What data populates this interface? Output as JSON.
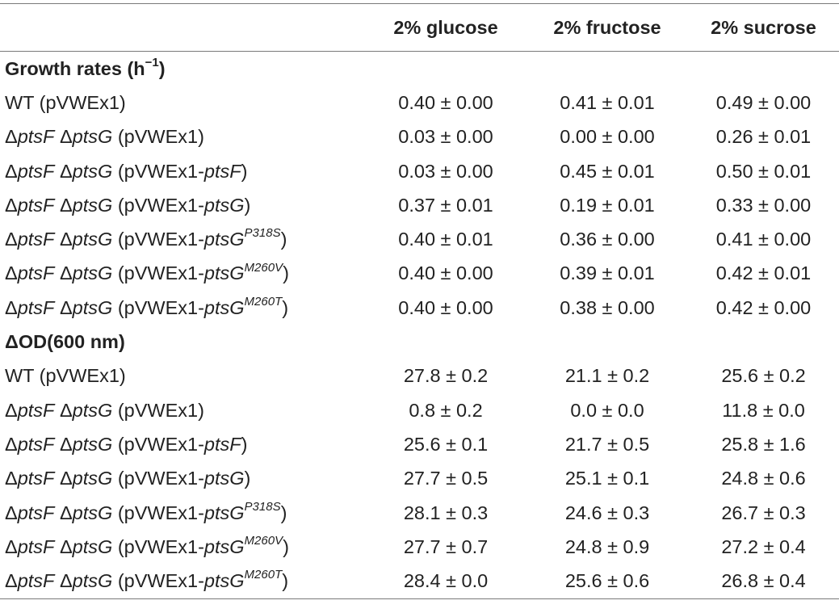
{
  "table": {
    "header": [
      "",
      "2% glucose",
      "2% fructose",
      "2% sucrose"
    ],
    "sections": [
      {
        "title": "Growth rates (h",
        "title_sup": "−1",
        "title_suffix": ")",
        "rows": [
          {
            "prefix": "WT (pVWEx1)",
            "gene1": "",
            "mid": "",
            "gene2": "",
            "plasmid": "",
            "plasmid_gene": "",
            "sup": "",
            "values": [
              "0.40 ± 0.00",
              "0.41 ± 0.01",
              "0.49 ± 0.00"
            ]
          },
          {
            "prefix": "Δ",
            "gene1": "ptsF",
            "mid": " Δ",
            "gene2": "ptsG",
            "plasmid": " (pVWEx1",
            "plasmid_gene": "",
            "sup": "",
            "values": [
              "0.03 ± 0.00",
              "0.00 ± 0.00",
              "0.26 ± 0.01"
            ]
          },
          {
            "prefix": "Δ",
            "gene1": "ptsF",
            "mid": " Δ",
            "gene2": "ptsG",
            "plasmid": " (pVWEx1-",
            "plasmid_gene": "ptsF",
            "sup": "",
            "values": [
              "0.03 ± 0.00",
              "0.45 ± 0.01",
              "0.50 ± 0.01"
            ]
          },
          {
            "prefix": "Δ",
            "gene1": "ptsF",
            "mid": " Δ",
            "gene2": "ptsG",
            "plasmid": " (pVWEx1-",
            "plasmid_gene": "ptsG",
            "sup": "",
            "values": [
              "0.37 ± 0.01",
              "0.19 ± 0.01",
              "0.33 ± 0.00"
            ]
          },
          {
            "prefix": "Δ",
            "gene1": "ptsF",
            "mid": " Δ",
            "gene2": "ptsG",
            "plasmid": " (pVWEx1-",
            "plasmid_gene": "ptsG",
            "sup": "P318S",
            "values": [
              "0.40 ± 0.01",
              "0.36 ± 0.00",
              "0.41 ± 0.00"
            ]
          },
          {
            "prefix": "Δ",
            "gene1": "ptsF",
            "mid": " Δ",
            "gene2": "ptsG",
            "plasmid": " (pVWEx1-",
            "plasmid_gene": "ptsG",
            "sup": "M260V",
            "values": [
              "0.40 ± 0.00",
              "0.39 ± 0.01",
              "0.42 ± 0.01"
            ]
          },
          {
            "prefix": "Δ",
            "gene1": "ptsF",
            "mid": " Δ",
            "gene2": "ptsG",
            "plasmid": " (pVWEx1-",
            "plasmid_gene": "ptsG",
            "sup": "M260T",
            "values": [
              "0.40 ± 0.00",
              "0.38 ± 0.00",
              "0.42 ± 0.00"
            ]
          }
        ]
      },
      {
        "title": "ΔOD(600 nm)",
        "title_sup": "",
        "title_suffix": "",
        "rows": [
          {
            "prefix": "WT (pVWEx1)",
            "gene1": "",
            "mid": "",
            "gene2": "",
            "plasmid": "",
            "plasmid_gene": "",
            "sup": "",
            "values": [
              "27.8 ± 0.2",
              "21.1 ± 0.2",
              "25.6 ± 0.2"
            ]
          },
          {
            "prefix": "Δ",
            "gene1": "ptsF",
            "mid": " Δ",
            "gene2": "ptsG",
            "plasmid": " (pVWEx1",
            "plasmid_gene": "",
            "sup": "",
            "values": [
              "0.8 ± 0.2",
              "0.0 ± 0.0",
              "11.8 ± 0.0"
            ]
          },
          {
            "prefix": "Δ",
            "gene1": "ptsF",
            "mid": " Δ",
            "gene2": "ptsG",
            "plasmid": " (pVWEx1-",
            "plasmid_gene": "ptsF",
            "sup": "",
            "values": [
              "25.6 ± 0.1",
              "21.7 ± 0.5",
              "25.8 ± 1.6"
            ]
          },
          {
            "prefix": "Δ",
            "gene1": "ptsF",
            "mid": " Δ",
            "gene2": "ptsG",
            "plasmid": " (pVWEx1-",
            "plasmid_gene": "ptsG",
            "sup": "",
            "values": [
              "27.7 ± 0.5",
              "25.1 ± 0.1",
              "24.8 ± 0.6"
            ]
          },
          {
            "prefix": "Δ",
            "gene1": "ptsF",
            "mid": " Δ",
            "gene2": "ptsG",
            "plasmid": " (pVWEx1-",
            "plasmid_gene": "ptsG",
            "sup": "P318S",
            "values": [
              "28.1 ± 0.3",
              "24.6 ± 0.3",
              "26.7 ± 0.3"
            ]
          },
          {
            "prefix": "Δ",
            "gene1": "ptsF",
            "mid": " Δ",
            "gene2": "ptsG",
            "plasmid": " (pVWEx1-",
            "plasmid_gene": "ptsG",
            "sup": "M260V",
            "values": [
              "27.7 ± 0.7",
              "24.8 ± 0.9",
              "27.2 ± 0.4"
            ]
          },
          {
            "prefix": "Δ",
            "gene1": "ptsF",
            "mid": " Δ",
            "gene2": "ptsG",
            "plasmid": " (pVWEx1-",
            "plasmid_gene": "ptsG",
            "sup": "M260T",
            "values": [
              "28.4 ± 0.0",
              "25.6 ± 0.6",
              "26.8 ± 0.4"
            ]
          }
        ]
      }
    ]
  }
}
